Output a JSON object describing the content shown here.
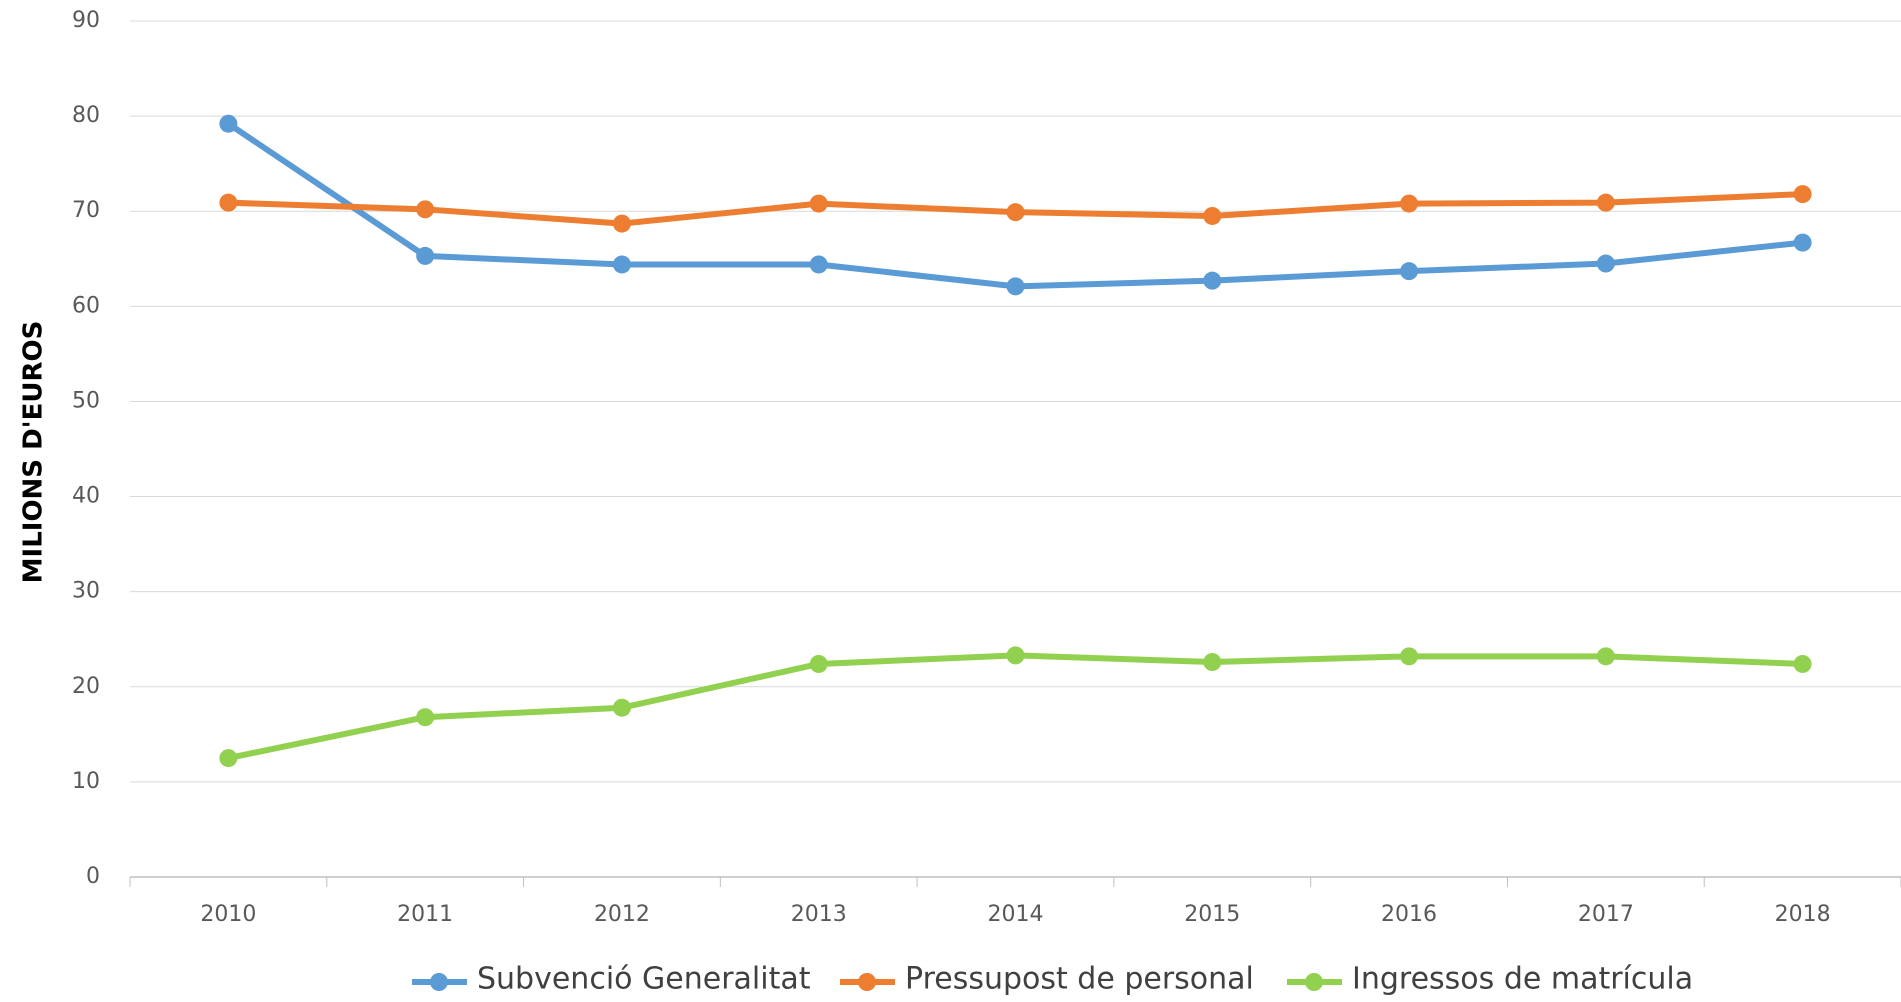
{
  "chart_data": {
    "type": "line",
    "y_axis_label": "MILIONS D'EUROS",
    "categories": [
      "2010",
      "2011",
      "2012",
      "2013",
      "2014",
      "2015",
      "2016",
      "2017",
      "2018"
    ],
    "series": [
      {
        "name": "Subvenció Generalitat",
        "color": "#5b9bd5",
        "values": [
          79.2,
          65.3,
          64.4,
          64.4,
          62.1,
          62.7,
          63.7,
          64.5,
          66.7
        ]
      },
      {
        "name": "Pressupost de personal",
        "color": "#ed7d31",
        "values": [
          70.9,
          70.2,
          68.7,
          70.8,
          69.9,
          69.5,
          70.8,
          70.9,
          71.8
        ]
      },
      {
        "name": "Ingressos de matrícula",
        "color": "#92d050",
        "values": [
          12.5,
          16.8,
          17.8,
          22.4,
          23.3,
          22.6,
          23.2,
          23.2,
          22.4
        ]
      }
    ],
    "ylim": [
      0,
      90
    ],
    "yticks": [
      0,
      10,
      20,
      30,
      40,
      50,
      60,
      70,
      80,
      90
    ],
    "grid": true,
    "legend": "bottom"
  }
}
